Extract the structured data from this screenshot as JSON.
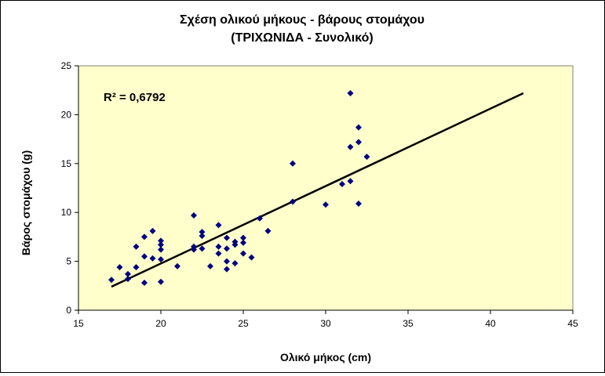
{
  "chart_data": {
    "type": "scatter",
    "title_line1": "Σχέση ολικού  μήκους - βάρους στομάχου",
    "title_line2": "(ΤΡΙΧΩΝΙΔΑ - Συνολικό)",
    "xlabel": "Ολικό μήκος (cm)",
    "ylabel": "Βάρος στομάχου (g)",
    "xlim": [
      15,
      45
    ],
    "ylim": [
      0,
      25
    ],
    "x_ticks": [
      15,
      20,
      25,
      30,
      35,
      40,
      45
    ],
    "y_ticks": [
      0,
      5,
      10,
      15,
      20,
      25
    ],
    "annotation": "R² = 0,6792",
    "grid": false,
    "colors": {
      "plot_background": "#ffffcc",
      "marker": "#000080",
      "trendline": "#000000"
    },
    "trendline": {
      "x": [
        17,
        42
      ],
      "y": [
        2.4,
        22.2
      ]
    },
    "points": [
      {
        "x": 17.0,
        "y": 3.1
      },
      {
        "x": 17.5,
        "y": 4.4
      },
      {
        "x": 18.0,
        "y": 3.7
      },
      {
        "x": 18.0,
        "y": 3.2
      },
      {
        "x": 18.5,
        "y": 6.5
      },
      {
        "x": 18.5,
        "y": 4.4
      },
      {
        "x": 19.0,
        "y": 7.5
      },
      {
        "x": 19.0,
        "y": 5.5
      },
      {
        "x": 19.0,
        "y": 2.8
      },
      {
        "x": 19.5,
        "y": 8.1
      },
      {
        "x": 19.5,
        "y": 5.3
      },
      {
        "x": 20.0,
        "y": 7.1
      },
      {
        "x": 20.0,
        "y": 6.7
      },
      {
        "x": 20.0,
        "y": 6.2
      },
      {
        "x": 20.0,
        "y": 5.2
      },
      {
        "x": 20.0,
        "y": 2.9
      },
      {
        "x": 21.0,
        "y": 4.5
      },
      {
        "x": 22.0,
        "y": 9.7
      },
      {
        "x": 22.0,
        "y": 6.5
      },
      {
        "x": 22.0,
        "y": 6.2
      },
      {
        "x": 22.5,
        "y": 8.0
      },
      {
        "x": 22.5,
        "y": 7.6
      },
      {
        "x": 22.5,
        "y": 6.3
      },
      {
        "x": 23.0,
        "y": 4.5
      },
      {
        "x": 23.5,
        "y": 8.7
      },
      {
        "x": 23.5,
        "y": 6.5
      },
      {
        "x": 23.5,
        "y": 5.8
      },
      {
        "x": 24.0,
        "y": 7.4
      },
      {
        "x": 24.0,
        "y": 6.3
      },
      {
        "x": 24.0,
        "y": 5.0
      },
      {
        "x": 24.0,
        "y": 4.2
      },
      {
        "x": 24.5,
        "y": 7.0
      },
      {
        "x": 24.5,
        "y": 6.7
      },
      {
        "x": 24.5,
        "y": 4.8
      },
      {
        "x": 25.0,
        "y": 7.4
      },
      {
        "x": 25.0,
        "y": 6.9
      },
      {
        "x": 25.0,
        "y": 5.8
      },
      {
        "x": 25.5,
        "y": 5.4
      },
      {
        "x": 26.0,
        "y": 9.4
      },
      {
        "x": 26.5,
        "y": 8.1
      },
      {
        "x": 28.0,
        "y": 15.0
      },
      {
        "x": 28.0,
        "y": 11.1
      },
      {
        "x": 30.0,
        "y": 10.8
      },
      {
        "x": 31.0,
        "y": 12.9
      },
      {
        "x": 31.5,
        "y": 22.2
      },
      {
        "x": 31.5,
        "y": 16.7
      },
      {
        "x": 31.5,
        "y": 13.2
      },
      {
        "x": 32.0,
        "y": 18.7
      },
      {
        "x": 32.0,
        "y": 17.2
      },
      {
        "x": 32.0,
        "y": 10.9
      },
      {
        "x": 32.5,
        "y": 15.7
      }
    ]
  }
}
